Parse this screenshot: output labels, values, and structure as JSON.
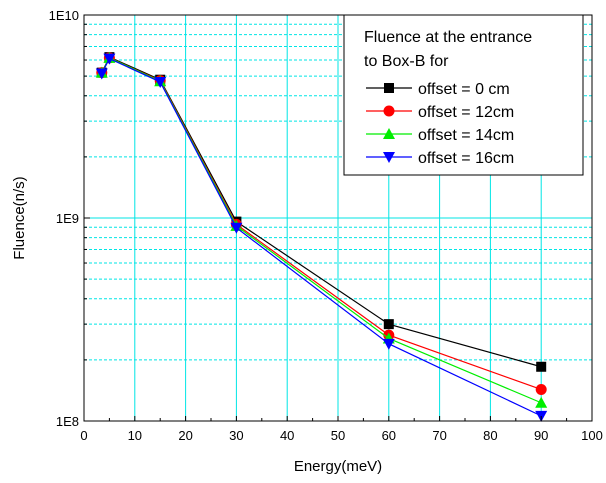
{
  "chart_data": {
    "type": "line",
    "xlabel": "Energy(meV)",
    "ylabel": "Fluence(n/s)",
    "xlim": [
      0,
      100
    ],
    "ylim": [
      100000000,
      10000000000
    ],
    "yscale": "log",
    "x_ticks": [
      "0",
      "10",
      "20",
      "30",
      "40",
      "50",
      "60",
      "70",
      "80",
      "90",
      "100"
    ],
    "y_ticks": [
      "1E8",
      "1E9",
      "1E10"
    ],
    "grid": true,
    "grid_color": "#00e5e5",
    "legend_title": [
      "Fluence at the entrance",
      "to Box-B for"
    ],
    "legend_position": "top-right",
    "x": [
      3.5,
      5,
      15,
      30,
      60,
      90
    ],
    "series": [
      {
        "name": "offset = 0 cm",
        "color": "#000000",
        "marker": "square",
        "values": [
          5200000000,
          6200000000,
          4800000000,
          960000000,
          300000000,
          185000000
        ]
      },
      {
        "name": "offset = 12cm",
        "color": "#ff0000",
        "marker": "circle",
        "values": [
          5200000000,
          6150000000,
          4750000000,
          930000000,
          265000000,
          143000000
        ]
      },
      {
        "name": "offset = 14cm",
        "color": "#00ee00",
        "marker": "triangle-up",
        "values": [
          5200000000,
          6150000000,
          4720000000,
          915000000,
          255000000,
          123000000
        ]
      },
      {
        "name": "offset = 16cm",
        "color": "#0000ff",
        "marker": "triangle-down",
        "values": [
          5150000000,
          6100000000,
          4680000000,
          895000000,
          240000000,
          106000000
        ]
      }
    ]
  }
}
